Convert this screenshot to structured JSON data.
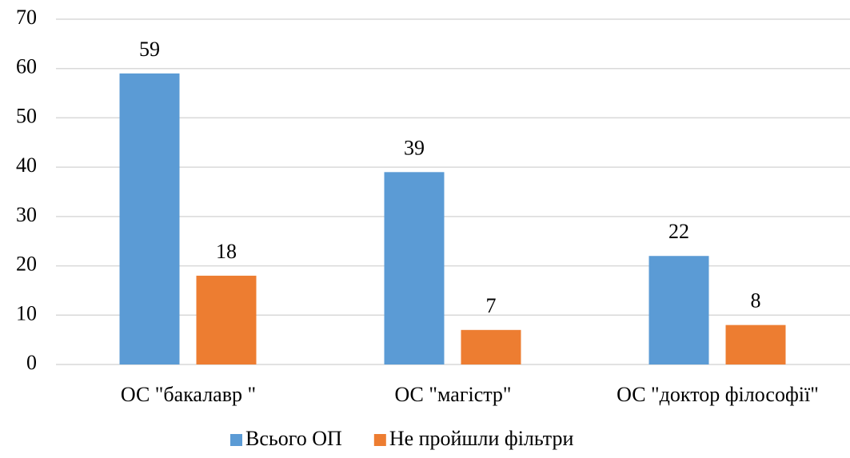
{
  "chart_data": {
    "type": "bar",
    "categories": [
      "ОС \"бакалавр \"",
      "ОС \"магістр\"",
      "ОС \"доктор філософії\""
    ],
    "series": [
      {
        "name": "Всього ОП",
        "color": "#5b9bd5",
        "values": [
          59,
          39,
          22
        ]
      },
      {
        "name": "Не пройшли фільтри",
        "color": "#ed7d31",
        "values": [
          18,
          7,
          8
        ]
      }
    ],
    "ylim": [
      0,
      70
    ],
    "yticks": [
      0,
      10,
      20,
      30,
      40,
      50,
      60,
      70
    ],
    "grid": true,
    "legend": "bottom"
  }
}
